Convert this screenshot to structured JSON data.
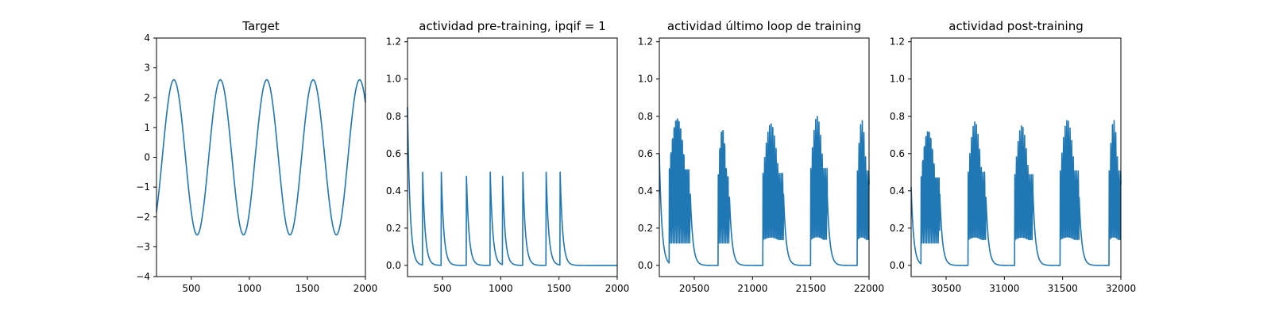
{
  "figure": {
    "line_color": "#1f77b4"
  },
  "chart_data": [
    {
      "type": "line",
      "title": "Target",
      "xlabel": "",
      "ylabel": "",
      "xlim": [
        200,
        2000
      ],
      "ylim": [
        -4,
        4
      ],
      "xticks": [
        500,
        1000,
        1500,
        2000
      ],
      "yticks": [
        -4,
        -3,
        -2,
        -1,
        0,
        1,
        2,
        3,
        4
      ],
      "ytick_labels": [
        "−4",
        "−3",
        "−2",
        "−1",
        "0",
        "1",
        "2",
        "3",
        "4"
      ],
      "grid": false,
      "legend": "none",
      "series": [
        {
          "type": "sine",
          "amplitude": 2.6,
          "period": 400,
          "peaks_at": [
            350,
            750,
            1150,
            1550,
            1950
          ],
          "x_start": 200,
          "x_end": 2000
        }
      ]
    },
    {
      "type": "line",
      "title": "actividad pre-training, ipqif = 1",
      "xlabel": "",
      "ylabel": "",
      "xlim": [
        200,
        2000
      ],
      "ylim": [
        -0.06,
        1.22
      ],
      "xticks": [
        500,
        1000,
        1500,
        2000
      ],
      "yticks": [
        0.0,
        0.2,
        0.4,
        0.6,
        0.8,
        1.0,
        1.2
      ],
      "ytick_labels": [
        "0.0",
        "0.2",
        "0.4",
        "0.6",
        "0.8",
        "1.0",
        "1.2"
      ],
      "grid": false,
      "legend": "none",
      "series": [
        {
          "type": "spike_decay",
          "initial": 0.85,
          "baseline": 0.0,
          "decay_tau": 22,
          "spikes": [
            [
              330,
              0.5
            ],
            [
              490,
              0.5
            ],
            [
              705,
              0.5
            ],
            [
              910,
              0.5
            ],
            [
              1015,
              0.5
            ],
            [
              1190,
              0.5
            ],
            [
              1390,
              0.5
            ],
            [
              1510,
              0.5
            ]
          ],
          "x_start": 200,
          "x_end": 2000
        }
      ]
    },
    {
      "type": "line",
      "title": "actividad último loop de training",
      "xlabel": "",
      "ylabel": "",
      "xlim": [
        20200,
        22000
      ],
      "ylim": [
        -0.06,
        1.22
      ],
      "xticks": [
        20500,
        21000,
        21500,
        22000
      ],
      "yticks": [
        0.0,
        0.2,
        0.4,
        0.6,
        0.8,
        1.0,
        1.2
      ],
      "ytick_labels": [
        "0.0",
        "0.2",
        "0.4",
        "0.6",
        "0.8",
        "1.0",
        "1.2"
      ],
      "grid": false,
      "legend": "none",
      "series": [
        {
          "type": "burst",
          "initial": 0.6,
          "decay_tau": 22,
          "bursts": [
            [
              20285,
              20465,
              0.82
            ],
            [
              20705,
              20800,
              0.76
            ],
            [
              21090,
              21265,
              0.76
            ],
            [
              21500,
              21640,
              0.8
            ],
            [
              21900,
              22000,
              0.78
            ]
          ],
          "x_start": 20200,
          "x_end": 22000
        }
      ]
    },
    {
      "type": "line",
      "title": "actividad post-training",
      "xlabel": "",
      "ylabel": "",
      "xlim": [
        30200,
        32000
      ],
      "ylim": [
        -0.06,
        1.22
      ],
      "xticks": [
        30500,
        31000,
        31500,
        32000
      ],
      "yticks": [
        0.0,
        0.2,
        0.4,
        0.6,
        0.8,
        1.0,
        1.2
      ],
      "ytick_labels": [
        "0.0",
        "0.2",
        "0.4",
        "0.6",
        "0.8",
        "1.0",
        "1.2"
      ],
      "grid": false,
      "legend": "none",
      "series": [
        {
          "type": "burst",
          "initial": 0.42,
          "decay_tau": 22,
          "bursts": [
            [
              30285,
              30445,
              0.75
            ],
            [
              30690,
              30840,
              0.77
            ],
            [
              31090,
              31245,
              0.75
            ],
            [
              31480,
              31640,
              0.78
            ],
            [
              31900,
              32000,
              0.78
            ]
          ],
          "x_start": 30200,
          "x_end": 32000
        }
      ]
    }
  ]
}
